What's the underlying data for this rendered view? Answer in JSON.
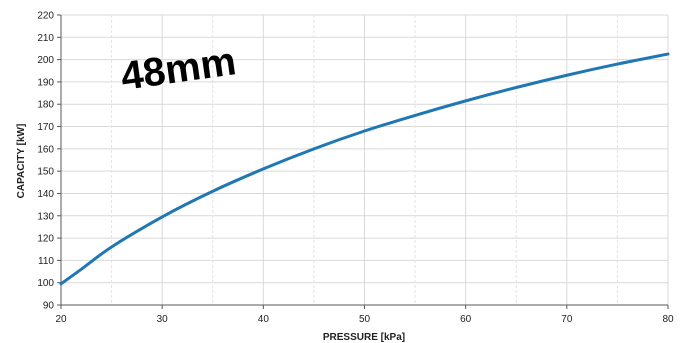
{
  "chart_data": {
    "type": "line",
    "title": "",
    "xlabel": "PRESSURE [kPa]",
    "ylabel": "CAPACITY [kW]",
    "annotation": "48mm",
    "xlim": [
      20,
      80
    ],
    "ylim": [
      90,
      220
    ],
    "x_ticks": [
      20,
      30,
      40,
      50,
      60,
      70,
      80
    ],
    "y_ticks": [
      90,
      100,
      110,
      120,
      130,
      140,
      150,
      160,
      170,
      180,
      190,
      200,
      210,
      220
    ],
    "x_minor_ticks": [
      25,
      35,
      45,
      55,
      65,
      75
    ],
    "grid": true,
    "legend": "none",
    "line_color": "#1f77b4",
    "series": [
      {
        "x": [
          20,
          22,
          25,
          30,
          35,
          40,
          45,
          50,
          55,
          60,
          65,
          70,
          75,
          80
        ],
        "y": [
          99.5,
          106,
          116,
          129.5,
          141,
          151,
          160,
          168,
          175,
          181.5,
          187.5,
          193,
          198,
          202.5
        ]
      }
    ]
  }
}
